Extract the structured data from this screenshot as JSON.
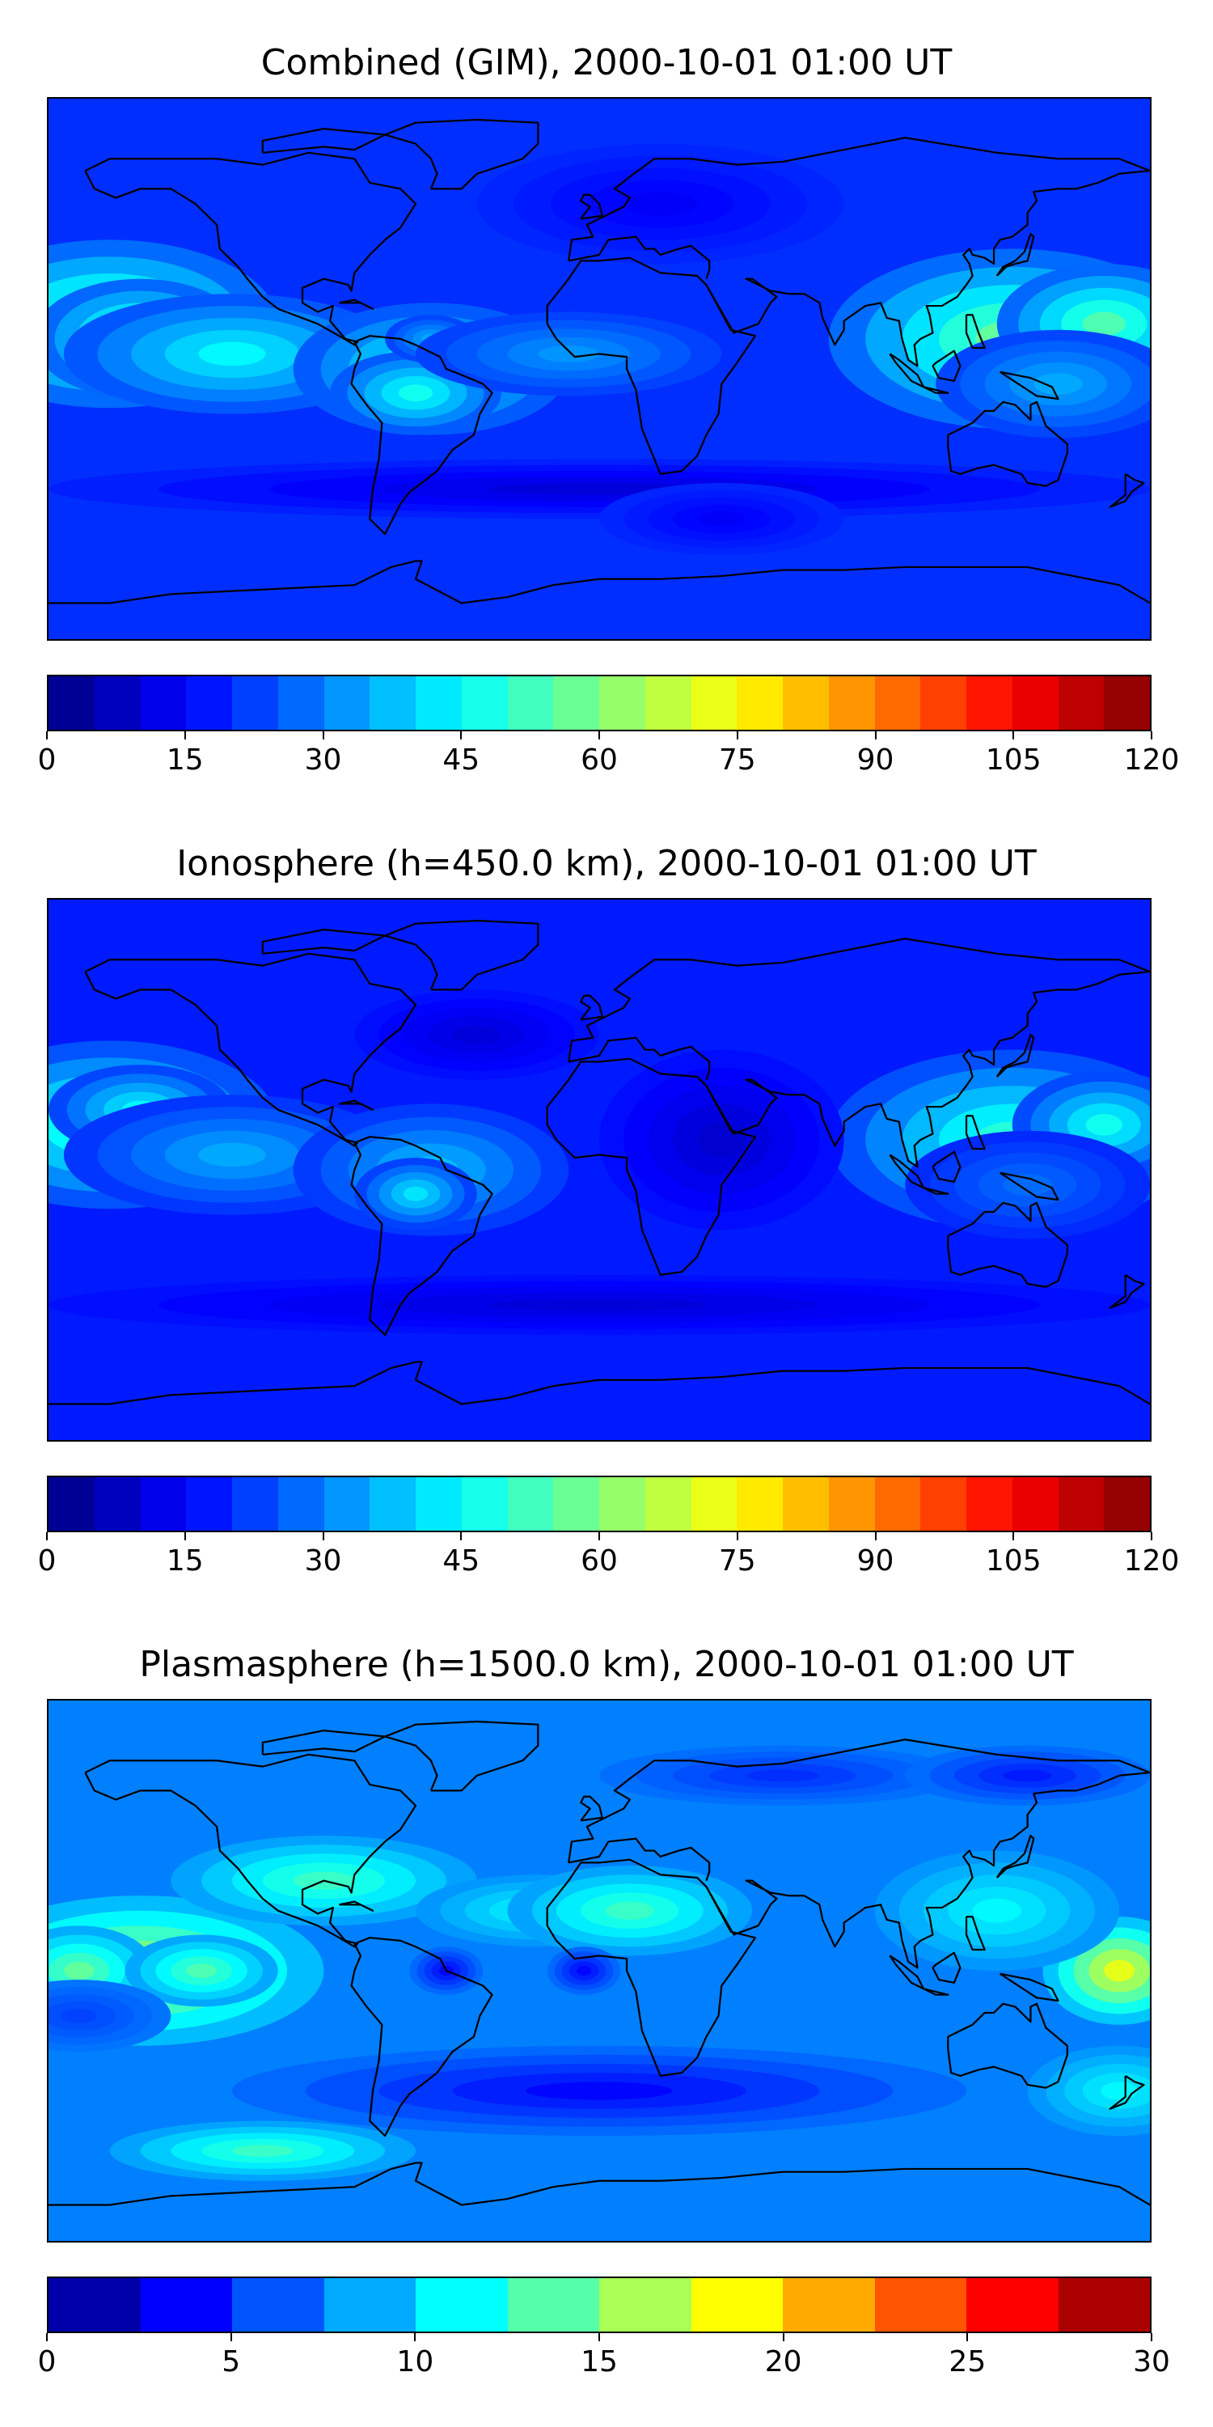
{
  "panels": [
    {
      "title": "Combined (GIM), 2000-10-01 01:00 UT",
      "colorbar": {
        "range": [
          0,
          120
        ],
        "levels": 24,
        "tick_labels": [
          "0",
          "15",
          "30",
          "45",
          "60",
          "75",
          "90",
          "105",
          "120"
        ]
      },
      "field": "combined"
    },
    {
      "title": "Ionosphere  (h=450.0 km), 2000-10-01 01:00 UT",
      "colorbar": {
        "range": [
          0,
          120
        ],
        "levels": 24,
        "tick_labels": [
          "0",
          "15",
          "30",
          "45",
          "60",
          "75",
          "90",
          "105",
          "120"
        ]
      },
      "field": "ionosphere"
    },
    {
      "title": "Plasmasphere (h=1500.0 km), 2000-10-01 01:00 UT",
      "colorbar": {
        "range": [
          0,
          30
        ],
        "levels": 12,
        "tick_labels": [
          "0",
          "5",
          "10",
          "15",
          "20",
          "25",
          "30"
        ]
      },
      "field": "plasmasphere"
    }
  ],
  "colormap": "jet",
  "coastline_color": "#000000"
}
